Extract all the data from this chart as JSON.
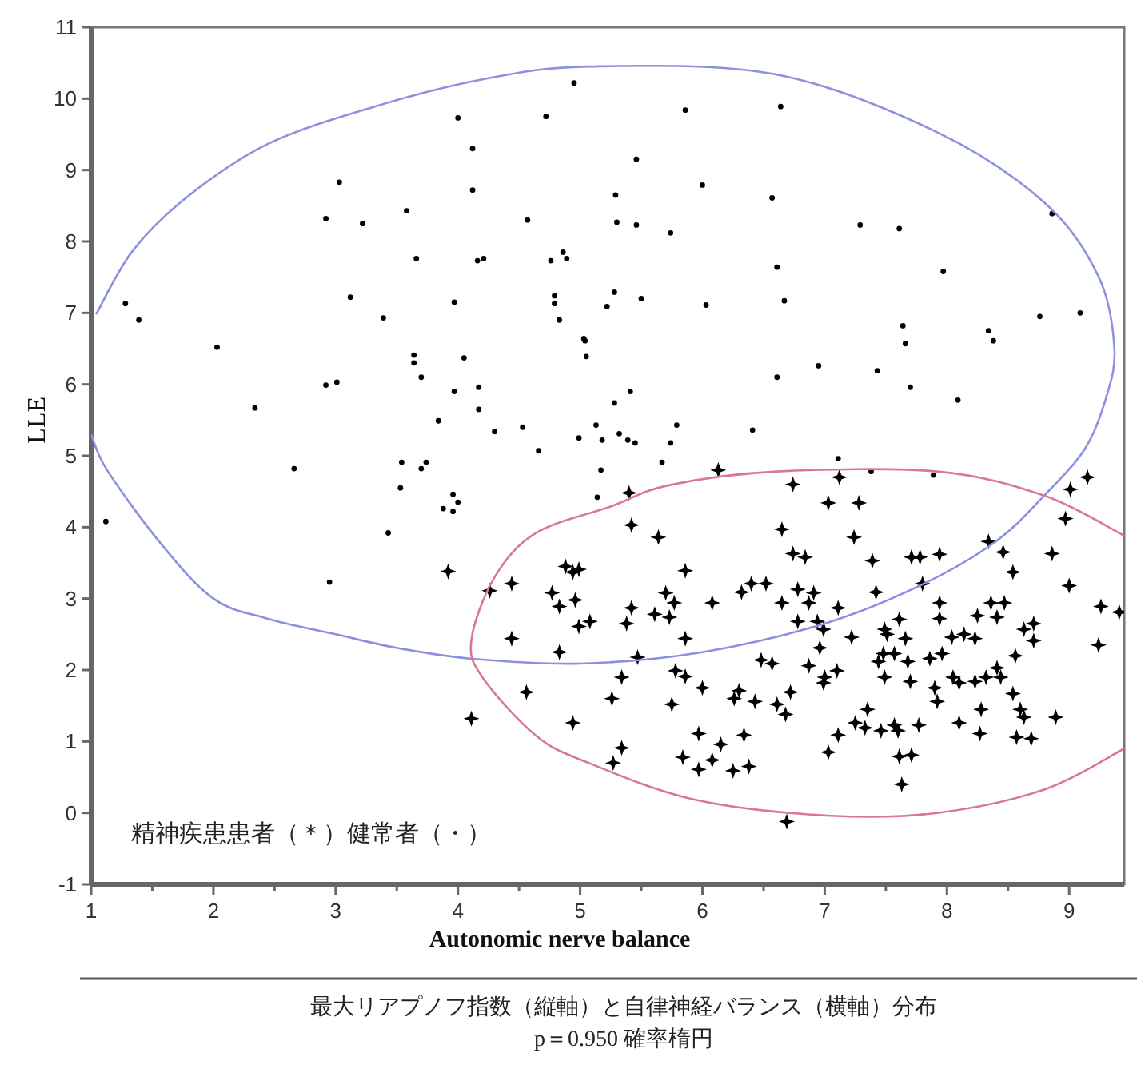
{
  "chart_data": {
    "type": "scatter",
    "xlabel": "Autonomic nerve balance",
    "ylabel": "LLE",
    "xlim": [
      1,
      9.45
    ],
    "ylim": [
      -1,
      11
    ],
    "xticks": [
      1,
      {
        "value": 1.5,
        "label": null
      },
      2,
      {
        "value": 2.5,
        "label": null
      },
      3,
      {
        "value": 3.5,
        "label": null
      },
      4,
      {
        "value": 4.5,
        "label": null
      },
      5,
      {
        "value": 5.5,
        "label": null
      },
      6,
      {
        "value": 6.5,
        "label": null
      },
      7,
      {
        "value": 7.5,
        "label": null
      },
      8,
      {
        "value": 8.5,
        "label": null
      },
      9
    ],
    "yticks": [
      -1,
      0,
      1,
      2,
      3,
      4,
      5,
      6,
      7,
      8,
      9,
      10,
      11
    ],
    "annotations": [
      "精神疾患患者（＊）健常者（・）",
      "最大リアプノフ指数（縦軸）と自律神経バランス（横軸）分布",
      "p＝0.950 確率楕円"
    ],
    "series": [
      {
        "type": "scatter",
        "marker": "circle",
        "color": "#000000",
        "x": [
          1.12,
          1.28,
          1.39,
          2.03,
          2.34,
          2.66,
          2.92,
          3.03,
          2.92,
          3.01,
          2.95,
          3.12,
          3.22,
          3.39,
          3.43,
          3.58,
          3.66,
          3.64,
          3.64,
          3.7,
          3.53,
          3.54,
          3.7,
          3.74,
          3.84,
          3.97,
          4.05,
          4.17,
          3.88,
          3.96,
          3.96,
          4.0,
          4.0,
          3.97,
          4.12,
          4.12,
          4.16,
          4.21,
          4.17,
          4.3,
          4.57,
          4.53,
          4.66,
          4.72,
          4.76,
          4.79,
          4.79,
          4.86,
          4.83,
          4.89,
          5.03,
          5.05,
          4.99,
          4.95,
          5.17,
          5.14,
          5.41,
          5.32,
          5.39,
          5.86,
          6.64,
          5.46,
          5.29,
          6.0,
          6.57,
          5.3,
          5.46,
          5.74,
          7.29,
          7.61,
          8.86,
          7.97,
          6.61,
          5.28,
          5.22,
          5.5,
          6.03,
          6.67,
          8.76,
          9.09,
          7.64,
          7.66,
          8.34,
          8.38,
          5.04,
          6.95,
          7.43,
          7.7,
          8.09,
          6.61,
          5.28,
          5.13,
          5.79,
          6.41,
          5.18,
          5.45,
          5.74,
          5.67,
          7.11,
          7.38,
          7.89
        ],
        "values": [
          4.08,
          7.13,
          6.9,
          6.52,
          5.67,
          4.82,
          8.32,
          8.83,
          5.99,
          6.03,
          3.23,
          7.22,
          8.25,
          6.93,
          3.92,
          8.43,
          7.76,
          6.41,
          6.3,
          6.1,
          4.55,
          4.91,
          4.82,
          4.91,
          5.49,
          7.15,
          6.37,
          5.96,
          4.26,
          4.22,
          4.46,
          4.35,
          9.73,
          5.9,
          9.3,
          8.72,
          7.73,
          7.76,
          5.65,
          5.34,
          8.3,
          5.4,
          5.07,
          9.75,
          7.73,
          7.13,
          7.24,
          7.85,
          6.9,
          7.76,
          6.64,
          6.39,
          5.25,
          10.22,
          4.8,
          4.42,
          5.9,
          5.31,
          5.22,
          9.84,
          9.89,
          9.15,
          8.65,
          8.79,
          8.61,
          8.27,
          8.23,
          8.12,
          8.23,
          8.18,
          8.39,
          7.58,
          7.64,
          7.29,
          7.09,
          7.2,
          7.11,
          7.17,
          6.95,
          7.0,
          6.82,
          6.57,
          6.75,
          6.61,
          6.61,
          6.26,
          6.19,
          5.96,
          5.78,
          6.1,
          5.74,
          5.43,
          5.43,
          5.36,
          5.22,
          5.18,
          5.18,
          4.91,
          4.96,
          4.78,
          4.73
        ]
      },
      {
        "type": "scatter",
        "marker": "star",
        "color": "#000000",
        "x": [
          6.13,
          5.4,
          6.74,
          7.12,
          7.03,
          7.28,
          5.42,
          5.64,
          6.65,
          7.24,
          9.15,
          9.01,
          8.97,
          8.86,
          9.0,
          9.26,
          9.41,
          9.24,
          8.89,
          8.34,
          8.46,
          8.54,
          7.94,
          7.71,
          7.78,
          7.39,
          7.8,
          7.42,
          6.74,
          6.84,
          5.86,
          4.94,
          4.99,
          6.4,
          6.52,
          6.32,
          6.78,
          6.91,
          5.7,
          5.77,
          6.08,
          6.65,
          6.87,
          7.11,
          4.96,
          5.42,
          5.61,
          5.73,
          5.38,
          4.99,
          5.08,
          6.78,
          6.94,
          6.99,
          7.49,
          7.94,
          7.94,
          8.36,
          8.47,
          8.25,
          8.41,
          8.71,
          8.63,
          8.71,
          8.14,
          8.23,
          8.04,
          7.22,
          7.66,
          7.51,
          7.61,
          7.48,
          7.57,
          7.68,
          7.44,
          7.86,
          7.96,
          5.86,
          5.47,
          6.96,
          6.48,
          6.57,
          5.78,
          5.86,
          5.34,
          6.0,
          6.87,
          7.0,
          6.99,
          7.1,
          7.49,
          7.7,
          8.05,
          8.1,
          8.23,
          8.32,
          8.44,
          8.41,
          8.56,
          7.9,
          7.92,
          8.28,
          8.54,
          8.6,
          8.63,
          6.3,
          6.43,
          6.26,
          6.61,
          6.72,
          6.68,
          5.75,
          5.26,
          4.94,
          7.35,
          7.25,
          7.11,
          7.33,
          7.46,
          7.6,
          7.57,
          7.77,
          8.1,
          8.27,
          8.57,
          8.69,
          5.97,
          6.15,
          6.34,
          5.34,
          5.27,
          5.84,
          5.97,
          6.08,
          6.25,
          6.38,
          7.03,
          7.61,
          7.71,
          7.63,
          6.69,
          3.92,
          4.26,
          4.44,
          4.44,
          4.88,
          4.77,
          4.83,
          4.83,
          4.56,
          4.11
        ],
        "values": [
          4.8,
          4.48,
          4.6,
          4.7,
          4.34,
          4.34,
          4.03,
          3.86,
          3.97,
          3.86,
          4.7,
          4.53,
          4.12,
          3.63,
          3.18,
          2.89,
          2.81,
          2.35,
          1.34,
          3.8,
          3.65,
          3.37,
          3.62,
          3.58,
          3.58,
          3.53,
          3.21,
          3.09,
          3.63,
          3.58,
          3.39,
          3.37,
          3.41,
          3.21,
          3.21,
          3.09,
          3.13,
          3.08,
          3.08,
          2.94,
          2.94,
          2.94,
          2.94,
          2.87,
          2.98,
          2.87,
          2.78,
          2.74,
          2.65,
          2.61,
          2.68,
          2.68,
          2.68,
          2.57,
          2.57,
          2.94,
          2.72,
          2.94,
          2.94,
          2.76,
          2.74,
          2.65,
          2.57,
          2.41,
          2.5,
          2.44,
          2.46,
          2.46,
          2.44,
          2.5,
          2.71,
          2.23,
          2.23,
          2.12,
          2.12,
          2.16,
          2.23,
          2.44,
          2.18,
          2.31,
          2.14,
          2.09,
          1.99,
          1.91,
          1.9,
          1.75,
          2.06,
          1.9,
          1.82,
          1.99,
          1.9,
          1.84,
          1.9,
          1.82,
          1.84,
          1.9,
          1.9,
          2.03,
          2.2,
          1.75,
          1.56,
          1.45,
          1.67,
          1.45,
          1.34,
          1.71,
          1.56,
          1.6,
          1.52,
          1.69,
          1.38,
          1.52,
          1.6,
          1.26,
          1.45,
          1.26,
          1.09,
          1.19,
          1.15,
          1.15,
          1.23,
          1.23,
          1.26,
          1.11,
          1.06,
          1.04,
          1.11,
          0.96,
          1.09,
          0.91,
          0.7,
          0.78,
          0.61,
          0.74,
          0.59,
          0.65,
          0.85,
          0.79,
          0.81,
          0.4,
          -0.12,
          3.38,
          3.11,
          3.21,
          2.44,
          3.45,
          3.08,
          2.89,
          2.25,
          1.69,
          1.32
        ]
      },
      {
        "type": "line",
        "color": "#8c90e0",
        "x": [
          1.04,
          1.34,
          1.79,
          2.45,
          3.32,
          4.2,
          5.08,
          6.6,
          7.92,
          8.8,
          9.24,
          9.37,
          9.3,
          9.13,
          8.8,
          8.4,
          7.8,
          7.0,
          6.0,
          5.0,
          4.1,
          3.5,
          3.0,
          2.44,
          2.0,
          1.57,
          1.13,
          1.0
        ],
        "values": [
          6.98,
          7.87,
          8.63,
          9.37,
          9.89,
          10.27,
          10.45,
          10.34,
          9.53,
          8.54,
          7.51,
          6.5,
          5.8,
          5.1,
          4.45,
          3.8,
          3.2,
          2.65,
          2.25,
          2.09,
          2.16,
          2.31,
          2.5,
          2.72,
          3.0,
          3.77,
          4.8,
          5.3
        ]
      },
      {
        "type": "line",
        "color": "#d97890",
        "x": [
          9.45,
          8.8,
          7.92,
          6.61,
          5.73,
          5.25,
          4.64,
          4.3,
          4.11,
          4.2,
          4.64,
          5.07,
          5.95,
          7.05,
          7.92,
          8.8,
          9.45
        ],
        "values": [
          3.88,
          4.44,
          4.78,
          4.78,
          4.59,
          4.29,
          3.92,
          3.3,
          2.42,
          1.9,
          1.08,
          0.7,
          0.18,
          -0.04,
          0.0,
          0.33,
          0.9
        ]
      }
    ]
  }
}
